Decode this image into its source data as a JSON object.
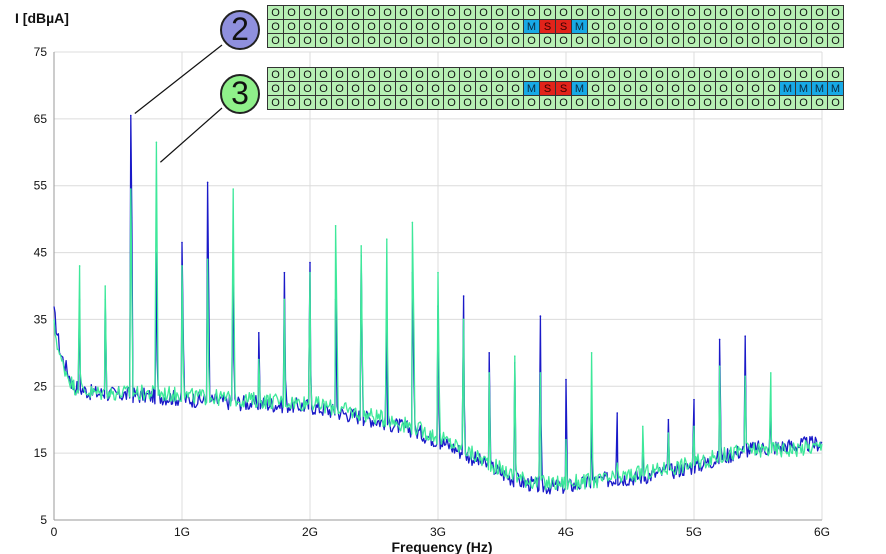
{
  "chart_data": {
    "type": "line",
    "ylabel": "I [dBµA]",
    "xlabel": "Frequency (Hz)",
    "xlim": [
      0,
      6000000000
    ],
    "ylim": [
      5,
      75
    ],
    "xticks": [
      0,
      1000000000,
      2000000000,
      3000000000,
      4000000000,
      5000000000,
      6000000000
    ],
    "xtick_labels": [
      "0",
      "1G",
      "2G",
      "3G",
      "4G",
      "5G",
      "6G"
    ],
    "yticks": [
      5,
      15,
      25,
      35,
      45,
      55,
      65,
      75
    ],
    "ytick_labels": [
      "5",
      "15",
      "25",
      "35",
      "45",
      "55",
      "65",
      "75"
    ],
    "grid": true,
    "series": [
      {
        "color": "#1a1ac8",
        "baseline": [
          [
            0,
            36
          ],
          [
            50000000,
            30
          ],
          [
            150000000,
            25
          ],
          [
            300000000,
            24
          ],
          [
            800000000,
            23.5
          ],
          [
            1100000000,
            23
          ],
          [
            1500000000,
            22.5
          ],
          [
            2000000000,
            22
          ],
          [
            2500000000,
            20
          ],
          [
            2800000000,
            18.5
          ],
          [
            3100000000,
            16
          ],
          [
            3400000000,
            13
          ],
          [
            3600000000,
            11
          ],
          [
            3800000000,
            10
          ],
          [
            4000000000,
            10
          ],
          [
            4300000000,
            11
          ],
          [
            4600000000,
            11.5
          ],
          [
            5000000000,
            13
          ],
          [
            5400000000,
            15.5
          ],
          [
            5700000000,
            16
          ],
          [
            6000000000,
            16.5
          ]
        ],
        "peaks": [
          [
            200000000,
            38
          ],
          [
            400000000,
            38
          ],
          [
            600000000,
            65.5
          ],
          [
            800000000,
            45
          ],
          [
            1000000000,
            46.5
          ],
          [
            1200000000,
            55.5
          ],
          [
            1400000000,
            45
          ],
          [
            1600000000,
            33
          ],
          [
            1800000000,
            42
          ],
          [
            2000000000,
            43.5
          ],
          [
            2200000000,
            38
          ],
          [
            2400000000,
            44.5
          ],
          [
            2600000000,
            35
          ],
          [
            2800000000,
            42
          ],
          [
            3000000000,
            37
          ],
          [
            3200000000,
            38.5
          ],
          [
            3400000000,
            30
          ],
          [
            3600000000,
            28.5
          ],
          [
            3800000000,
            35.5
          ],
          [
            4000000000,
            26
          ],
          [
            4200000000,
            20
          ],
          [
            4400000000,
            21
          ],
          [
            4600000000,
            16
          ],
          [
            4800000000,
            20
          ],
          [
            5000000000,
            23
          ],
          [
            5200000000,
            32
          ],
          [
            5400000000,
            32.5
          ],
          [
            5600000000,
            21
          ]
        ]
      },
      {
        "color": "#3ee89a",
        "baseline": [
          [
            0,
            34
          ],
          [
            50000000,
            29
          ],
          [
            150000000,
            25
          ],
          [
            300000000,
            24
          ],
          [
            800000000,
            24
          ],
          [
            1100000000,
            23.5
          ],
          [
            1500000000,
            23
          ],
          [
            2000000000,
            22.5
          ],
          [
            2500000000,
            20.5
          ],
          [
            2800000000,
            19
          ],
          [
            3100000000,
            16.5
          ],
          [
            3400000000,
            13.5
          ],
          [
            3600000000,
            11.5
          ],
          [
            3800000000,
            10.5
          ],
          [
            4000000000,
            10.5
          ],
          [
            4300000000,
            11
          ],
          [
            4600000000,
            12
          ],
          [
            5000000000,
            13.5
          ],
          [
            5400000000,
            15.5
          ],
          [
            5700000000,
            15.5
          ],
          [
            6000000000,
            16
          ]
        ],
        "peaks": [
          [
            200000000,
            43
          ],
          [
            400000000,
            40
          ],
          [
            600000000,
            54.5
          ],
          [
            800000000,
            61.5
          ],
          [
            1000000000,
            43
          ],
          [
            1200000000,
            44
          ],
          [
            1400000000,
            54.5
          ],
          [
            1600000000,
            29
          ],
          [
            1800000000,
            38
          ],
          [
            2000000000,
            42
          ],
          [
            2200000000,
            49
          ],
          [
            2400000000,
            46
          ],
          [
            2600000000,
            47
          ],
          [
            2800000000,
            49.5
          ],
          [
            3000000000,
            42
          ],
          [
            3200000000,
            35
          ],
          [
            3400000000,
            27
          ],
          [
            3600000000,
            29.5
          ],
          [
            3800000000,
            27
          ],
          [
            4000000000,
            17
          ],
          [
            4200000000,
            30
          ],
          [
            4400000000,
            13.5
          ],
          [
            4600000000,
            19
          ],
          [
            4800000000,
            18
          ],
          [
            5000000000,
            19
          ],
          [
            5200000000,
            28
          ],
          [
            5400000000,
            26.5
          ],
          [
            5600000000,
            27
          ]
        ]
      }
    ]
  },
  "annotations": [
    {
      "label": "2",
      "badge_color": "#8f90de",
      "rows": [
        [
          "O",
          "O",
          "O",
          "O",
          "O",
          "O",
          "O",
          "O",
          "O",
          "O",
          "O",
          "O",
          "O",
          "O",
          "O",
          "O",
          "O",
          "O",
          "O",
          "O",
          "O",
          "O",
          "O",
          "O",
          "O",
          "O",
          "O",
          "O",
          "O",
          "O",
          "O",
          "O",
          "O",
          "O",
          "O",
          "O"
        ],
        [
          "O",
          "O",
          "O",
          "O",
          "O",
          "O",
          "O",
          "O",
          "O",
          "O",
          "O",
          "O",
          "O",
          "O",
          "O",
          "O",
          "M",
          "S",
          "S",
          "M",
          "O",
          "O",
          "O",
          "O",
          "O",
          "O",
          "O",
          "O",
          "O",
          "O",
          "O",
          "O",
          "O",
          "O",
          "O",
          "O"
        ],
        [
          "O",
          "O",
          "O",
          "O",
          "O",
          "O",
          "O",
          "O",
          "O",
          "O",
          "O",
          "O",
          "O",
          "O",
          "O",
          "O",
          "O",
          "O",
          "O",
          "O",
          "O",
          "O",
          "O",
          "O",
          "O",
          "O",
          "O",
          "O",
          "O",
          "O",
          "O",
          "O",
          "O",
          "O",
          "O",
          "O"
        ]
      ]
    },
    {
      "label": "3",
      "badge_color": "#8ff08a",
      "rows": [
        [
          "O",
          "O",
          "O",
          "O",
          "O",
          "O",
          "O",
          "O",
          "O",
          "O",
          "O",
          "O",
          "O",
          "O",
          "O",
          "O",
          "O",
          "O",
          "O",
          "O",
          "O",
          "O",
          "O",
          "O",
          "O",
          "O",
          "O",
          "O",
          "O",
          "O",
          "O",
          "O",
          "O",
          "O",
          "O",
          "O"
        ],
        [
          "O",
          "O",
          "O",
          "O",
          "O",
          "O",
          "O",
          "O",
          "O",
          "O",
          "O",
          "O",
          "O",
          "O",
          "O",
          "O",
          "M",
          "S",
          "S",
          "M",
          "O",
          "O",
          "O",
          "O",
          "O",
          "O",
          "O",
          "O",
          "O",
          "O",
          "O",
          "O",
          "M",
          "M",
          "M",
          "M"
        ],
        [
          "O",
          "O",
          "O",
          "O",
          "O",
          "O",
          "O",
          "O",
          "O",
          "O",
          "O",
          "O",
          "O",
          "O",
          "O",
          "O",
          "O",
          "O",
          "O",
          "O",
          "O",
          "O",
          "O",
          "O",
          "O",
          "O",
          "O",
          "O",
          "O",
          "O",
          "O",
          "O",
          "O",
          "O",
          "O",
          "O"
        ]
      ]
    }
  ]
}
